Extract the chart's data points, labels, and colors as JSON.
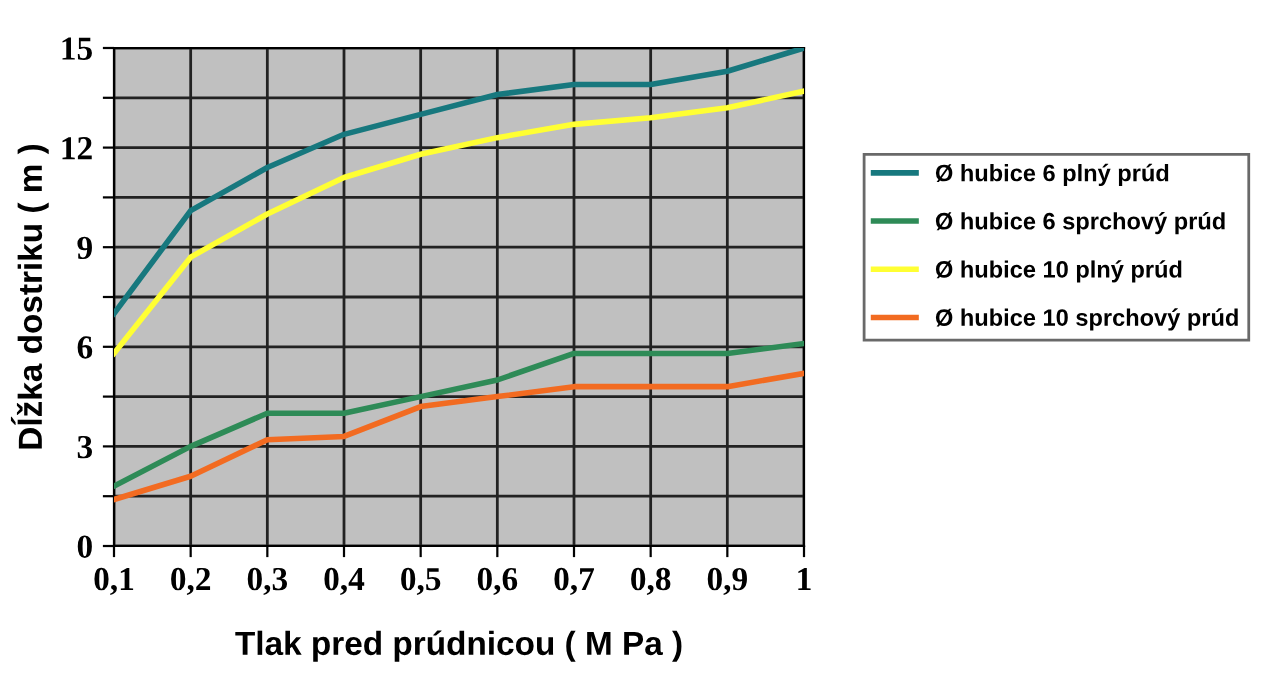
{
  "chart_data": {
    "type": "line",
    "xlabel": "Tlak pred prúdnicou ( M Pa )",
    "ylabel": "Dĺžka dostriku ( m )",
    "categories": [
      "0,1",
      "0,2",
      "0,3",
      "0,4",
      "0,5",
      "0,6",
      "0,7",
      "0,8",
      "0,9",
      "1"
    ],
    "series": [
      {
        "name": "Ø hubice 6 plný prúd",
        "color": "#17787e",
        "values": [
          7.0,
          10.1,
          11.4,
          12.4,
          13.0,
          13.6,
          13.9,
          13.9,
          14.3,
          15.0
        ]
      },
      {
        "name": "Ø hubice 6 sprchový prúd",
        "color": "#2e8b57",
        "values": [
          1.8,
          3.0,
          4.0,
          4.0,
          4.5,
          5.0,
          5.8,
          5.8,
          5.8,
          6.1
        ]
      },
      {
        "name": "Ø hubice 10 plný prúd",
        "color": "#ffff33",
        "values": [
          5.8,
          8.7,
          10.0,
          11.1,
          11.8,
          12.3,
          12.7,
          12.9,
          13.2,
          13.7
        ]
      },
      {
        "name": "Ø hubice 10 sprchový prúd",
        "color": "#f26b21",
        "values": [
          1.4,
          2.1,
          3.2,
          3.3,
          4.2,
          4.5,
          4.8,
          4.8,
          4.8,
          5.2
        ]
      }
    ],
    "ylim": [
      0,
      15
    ],
    "yticks": [
      0,
      {
        "value": 1.5,
        "label": null
      },
      3,
      {
        "value": 4.5,
        "label": null
      },
      6,
      {
        "value": 7.5,
        "label": null
      },
      9,
      {
        "value": 10.5,
        "label": null
      },
      12,
      {
        "value": 13.5,
        "label": null
      },
      15
    ],
    "grid": true,
    "legend": "right",
    "marker": "none",
    "line_style": "solid"
  }
}
